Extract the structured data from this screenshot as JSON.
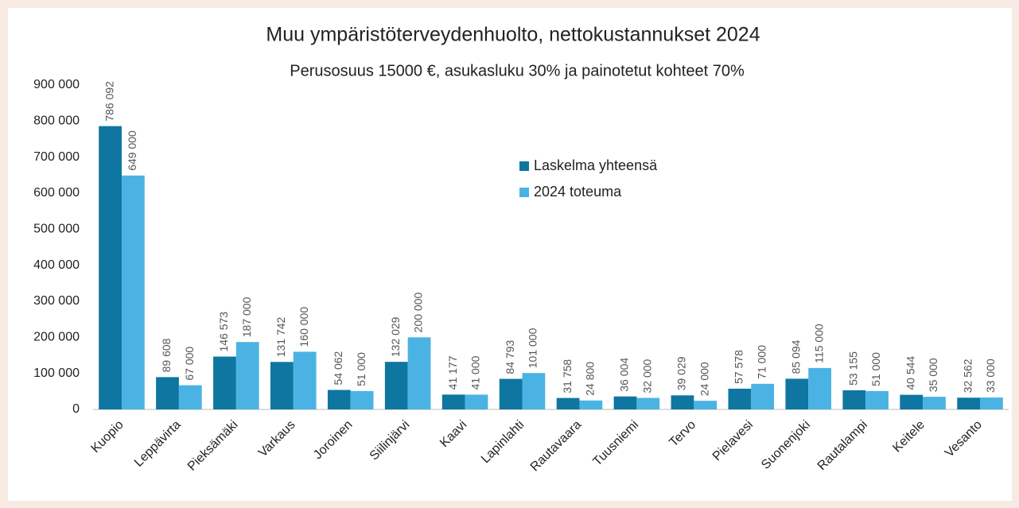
{
  "chart_data": {
    "type": "bar",
    "title": "Muu ympäristöterveydenhuolto, nettokustannukset 2024",
    "subtitle": "Perusosuus 15000 €, asukasluku 30% ja painotetut kohteet 70%",
    "categories": [
      "Kuopio",
      "Leppävirta",
      "Pieksämäki",
      "Varkaus",
      "Joroinen",
      "Siilinjärvi",
      "Kaavi",
      "Lapinlahti",
      "Rautavaara",
      "Tuusniemi",
      "Tervo",
      "Pielavesi",
      "Suonenjoki",
      "Rautalampi",
      "Keitele",
      "Vesanto"
    ],
    "series": [
      {
        "name": "Laskelma yhteensä",
        "color": "#0e76a0",
        "values": [
          786092,
          89608,
          146573,
          131742,
          54062,
          132029,
          41177,
          84793,
          31758,
          36004,
          39029,
          57578,
          85094,
          53155,
          40544,
          32562
        ],
        "value_labels": [
          "786 092",
          "89 608",
          "146 573",
          "131 742",
          "54 062",
          "132 029",
          "41 177",
          "84 793",
          "31 758",
          "36 004",
          "39 029",
          "57 578",
          "85 094",
          "53 155",
          "40 544",
          "32 562"
        ]
      },
      {
        "name": "2024 toteuma",
        "color": "#4ab3e3",
        "values": [
          649000,
          67000,
          187000,
          160000,
          51000,
          200000,
          41000,
          101000,
          24800,
          32000,
          24000,
          71000,
          115000,
          51000,
          35000,
          33000
        ],
        "value_labels": [
          "649 000",
          "67 000",
          "187 000",
          "160 000",
          "51 000",
          "200 000",
          "41 000",
          "101 000",
          "24 800",
          "32 000",
          "24 000",
          "71 000",
          "115 000",
          "51 000",
          "35 000",
          "33 000"
        ]
      }
    ],
    "ylim": [
      0,
      900000
    ],
    "yticks": [
      0,
      {
        "value": 100000,
        "label": "100 000"
      },
      {
        "value": 200000,
        "label": "200 000"
      },
      {
        "value": 300000,
        "label": "300 000"
      },
      {
        "value": 400000,
        "label": "400 000"
      },
      {
        "value": 500000,
        "label": "500 000"
      },
      {
        "value": 600000,
        "label": "600 000"
      },
      {
        "value": 700000,
        "label": "700 000"
      },
      {
        "value": 800000,
        "label": "800 000"
      },
      {
        "value": 900000,
        "label": "900 000"
      }
    ],
    "grid": false,
    "legend": "top-center"
  }
}
